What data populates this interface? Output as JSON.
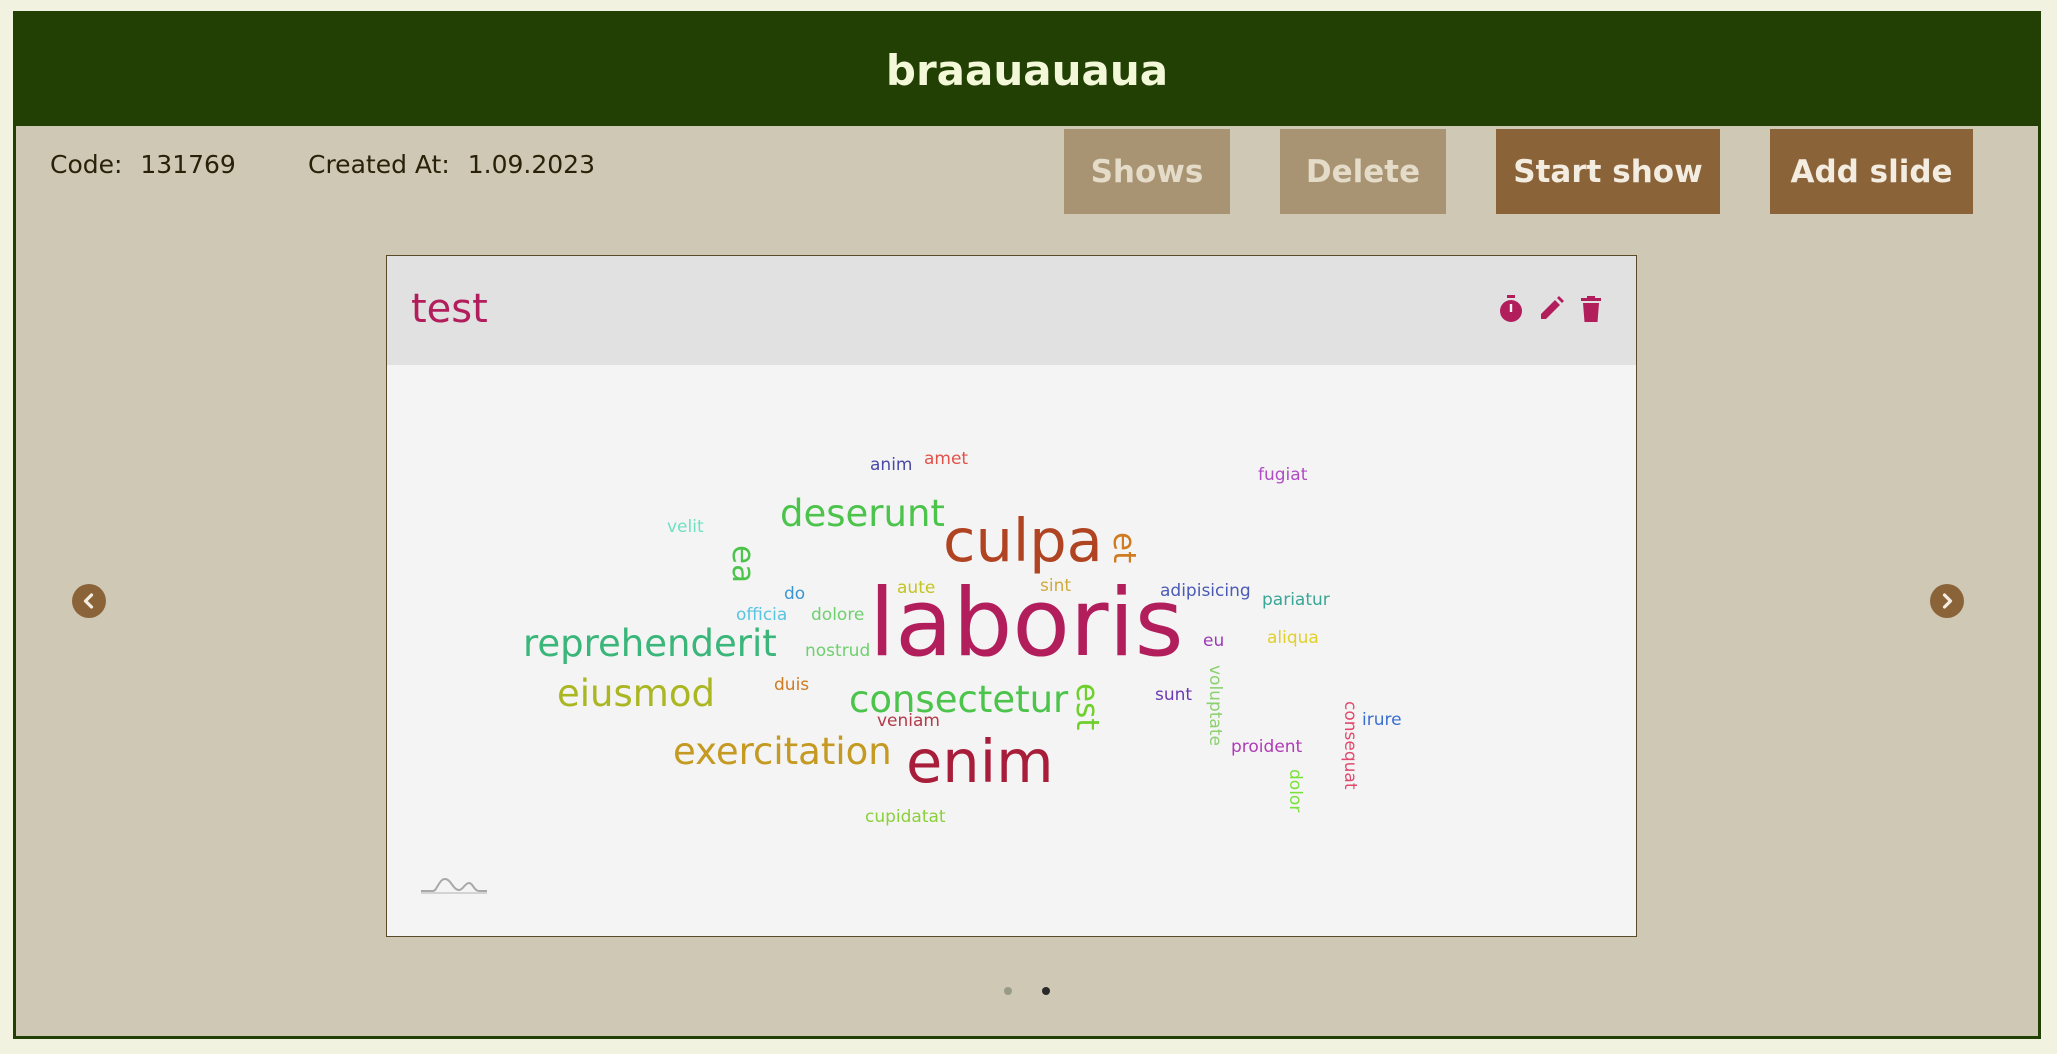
{
  "header": {
    "title": "braauauaua"
  },
  "meta": {
    "code_label": "Code:",
    "code_value": "131769",
    "created_label": "Created At:",
    "created_value": "1.09.2023"
  },
  "toolbar": {
    "shows_label": "Shows",
    "delete_label": "Delete",
    "start_label": "Start show",
    "add_label": "Add slide"
  },
  "slide": {
    "title": "test",
    "icons": [
      "timer-icon",
      "edit-icon",
      "trash-icon"
    ]
  },
  "wordcloud": {
    "words": [
      "anim",
      "amet",
      "fugiat",
      "velit",
      "deserunt",
      "culpa",
      "et",
      "ea",
      "adipisicing",
      "pariatur",
      "do",
      "aute",
      "sint",
      "laboris",
      "officia",
      "dolore",
      "aliqua",
      "reprehenderit",
      "nostrud",
      "eu",
      "voluptate",
      "eiusmod",
      "duis",
      "consectetur",
      "est",
      "sunt",
      "consequat",
      "irure",
      "veniam",
      "exercitation",
      "enim",
      "proident",
      "dolor",
      "cupidatat"
    ]
  },
  "pager": {
    "count": 2,
    "active_index": 1
  },
  "colors": {
    "header_bg": "#223f04",
    "frame_bg": "#cec8b4",
    "accent": "#b21e5c",
    "button_active": "#8b6339",
    "button_disabled": "#a89472"
  }
}
